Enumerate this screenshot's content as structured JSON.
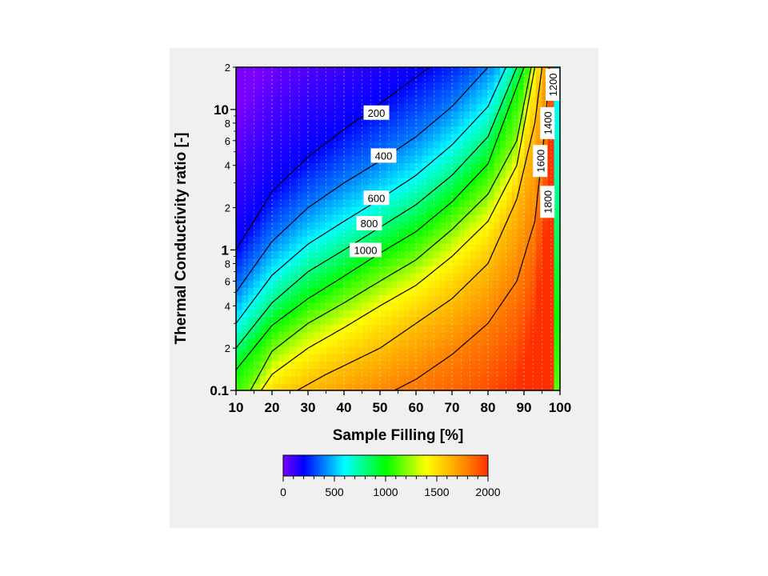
{
  "chart_data": {
    "type": "heatmap",
    "title": "",
    "xlabel": "Sample Filling [%]",
    "ylabel": "Thermal Conductivity ratio [-]",
    "x_scale": "linear",
    "y_scale": "log",
    "xlim": [
      10,
      100
    ],
    "ylim": [
      0.1,
      20
    ],
    "x_ticks": [
      10,
      20,
      30,
      40,
      50,
      60,
      70,
      80,
      90,
      100
    ],
    "y_major_ticks": [
      {
        "value": 0.1,
        "label": "0.1"
      },
      {
        "value": 1,
        "label": "1"
      },
      {
        "value": 10,
        "label": "10"
      }
    ],
    "y_minor_ticks": [
      {
        "value": 0.2,
        "label": "2"
      },
      {
        "value": 0.4,
        "label": "4"
      },
      {
        "value": 0.6,
        "label": "6"
      },
      {
        "value": 0.8,
        "label": "8"
      },
      {
        "value": 2,
        "label": "2"
      },
      {
        "value": 4,
        "label": "4"
      },
      {
        "value": 6,
        "label": "6"
      },
      {
        "value": 8,
        "label": "8"
      },
      {
        "value": 20,
        "label": "2"
      }
    ],
    "vertical_grid": "dotted",
    "contour_levels": [
      {
        "level": 200,
        "label": "200",
        "label_at": [
          49,
          9.5
        ],
        "points": [
          [
            10,
            1.0
          ],
          [
            20,
            2.6
          ],
          [
            30,
            4.6
          ],
          [
            40,
            7.2
          ],
          [
            50,
            11
          ],
          [
            60,
            17
          ],
          [
            64,
            20
          ]
        ]
      },
      {
        "level": 400,
        "label": "400",
        "label_at": [
          51,
          4.7
        ],
        "points": [
          [
            10,
            0.5
          ],
          [
            20,
            1.15
          ],
          [
            30,
            2.0
          ],
          [
            40,
            3.0
          ],
          [
            50,
            4.3
          ],
          [
            60,
            6.4
          ],
          [
            70,
            10.5
          ],
          [
            80,
            20
          ]
        ]
      },
      {
        "level": 600,
        "label": "600",
        "label_at": [
          49,
          2.35
        ],
        "points": [
          [
            10,
            0.3
          ],
          [
            20,
            0.66
          ],
          [
            30,
            1.1
          ],
          [
            40,
            1.6
          ],
          [
            50,
            2.3
          ],
          [
            60,
            3.4
          ],
          [
            70,
            5.6
          ],
          [
            80,
            10.5
          ],
          [
            85,
            20
          ]
        ]
      },
      {
        "level": 800,
        "label": "800",
        "label_at": [
          47,
          1.55
        ],
        "points": [
          [
            10,
            0.2
          ],
          [
            20,
            0.42
          ],
          [
            30,
            0.7
          ],
          [
            40,
            1.0
          ],
          [
            50,
            1.45
          ],
          [
            60,
            2.1
          ],
          [
            70,
            3.4
          ],
          [
            80,
            6.4
          ],
          [
            88,
            20
          ]
        ]
      },
      {
        "level": 1000,
        "label": "1000",
        "label_at": [
          46,
          1.0
        ],
        "points": [
          [
            10,
            0.14
          ],
          [
            20,
            0.29
          ],
          [
            30,
            0.45
          ],
          [
            40,
            0.65
          ],
          [
            50,
            0.95
          ],
          [
            60,
            1.35
          ],
          [
            70,
            2.2
          ],
          [
            80,
            4.1
          ],
          [
            90,
            20
          ]
        ]
      },
      {
        "level": 1200,
        "label": "1200",
        "label_at": [
          98,
          15
        ],
        "points": [
          [
            14,
            0.1
          ],
          [
            20,
            0.19
          ],
          [
            30,
            0.3
          ],
          [
            40,
            0.42
          ],
          [
            50,
            0.6
          ],
          [
            60,
            0.85
          ],
          [
            70,
            1.4
          ],
          [
            80,
            2.5
          ],
          [
            88,
            6.0
          ],
          [
            92,
            20
          ]
        ]
      },
      {
        "level": 1400,
        "label": "1400",
        "label_at": [
          96.5,
          8
        ],
        "points": [
          [
            17,
            0.1
          ],
          [
            20,
            0.13
          ],
          [
            30,
            0.2
          ],
          [
            40,
            0.28
          ],
          [
            50,
            0.4
          ],
          [
            60,
            0.56
          ],
          [
            70,
            0.9
          ],
          [
            80,
            1.6
          ],
          [
            88,
            4.0
          ],
          [
            93,
            20
          ]
        ]
      },
      {
        "level": 1600,
        "label": "1600",
        "label_at": [
          94.5,
          4.3
        ],
        "points": [
          [
            27,
            0.1
          ],
          [
            35,
            0.13
          ],
          [
            40,
            0.15
          ],
          [
            50,
            0.2
          ],
          [
            60,
            0.3
          ],
          [
            70,
            0.45
          ],
          [
            80,
            0.8
          ],
          [
            88,
            2.3
          ],
          [
            93,
            8.0
          ],
          [
            95,
            20
          ]
        ]
      },
      {
        "level": 1800,
        "label": "1800",
        "label_at": [
          96.5,
          2.2
        ],
        "points": [
          [
            54,
            0.1
          ],
          [
            60,
            0.12
          ],
          [
            70,
            0.18
          ],
          [
            80,
            0.3
          ],
          [
            88,
            0.6
          ],
          [
            93,
            1.6
          ],
          [
            96,
            8.0
          ],
          [
            97,
            20
          ]
        ]
      }
    ],
    "colorbar": {
      "min": 0,
      "max": 2000,
      "tick_labels": [
        "0",
        "500",
        "1000",
        "1500",
        "2000"
      ],
      "tick_values": [
        0,
        500,
        1000,
        1500,
        2000
      ],
      "colors": [
        "#7a00ff",
        "#0000ff",
        "#0080ff",
        "#00ffff",
        "#00ff80",
        "#00ff00",
        "#80ff00",
        "#ffff00",
        "#ffc000",
        "#ff8000",
        "#ff3000"
      ]
    }
  }
}
